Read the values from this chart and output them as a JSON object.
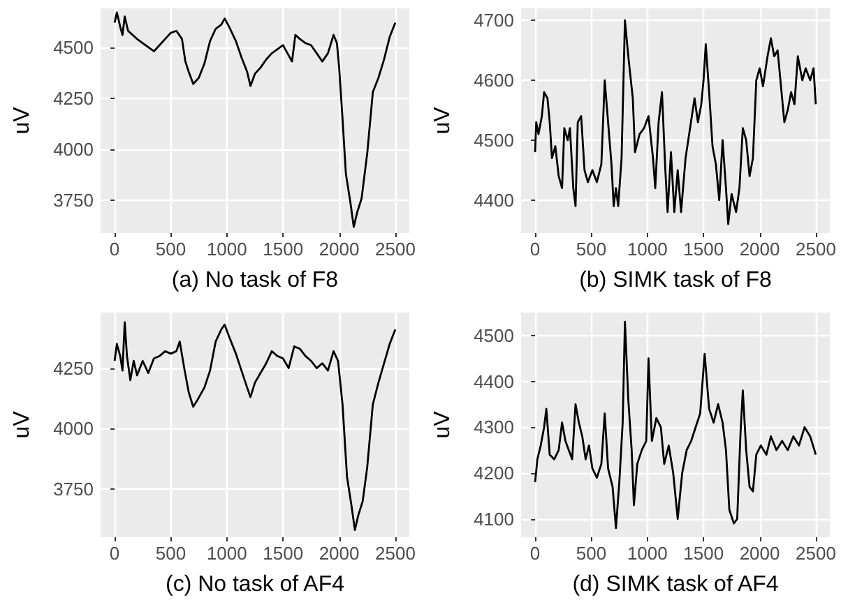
{
  "chart_data": [
    {
      "type": "line",
      "xlabel": "(a) No task of F8",
      "ylabel": "uV",
      "xlim": [
        -125,
        2625
      ],
      "xticks": [
        0,
        500,
        1000,
        1500,
        2000,
        2500
      ],
      "ylim": [
        3590,
        4690
      ],
      "yticks": [
        3750,
        4000,
        4250,
        4500
      ],
      "grid": true,
      "marker": "none",
      "line_style": "solid",
      "series": [
        {
          "color": "#000000",
          "x": [
            0,
            20,
            50,
            70,
            90,
            120,
            160,
            200,
            250,
            300,
            350,
            400,
            450,
            500,
            550,
            600,
            630,
            660,
            700,
            750,
            800,
            850,
            900,
            950,
            980,
            1020,
            1080,
            1130,
            1180,
            1210,
            1250,
            1300,
            1350,
            1400,
            1450,
            1500,
            1550,
            1580,
            1610,
            1650,
            1700,
            1750,
            1800,
            1850,
            1900,
            1950,
            1980,
            2000,
            2030,
            2060,
            2100,
            2130,
            2160,
            2200,
            2250,
            2300,
            2350,
            2400,
            2450,
            2500
          ],
          "values": [
            4620,
            4670,
            4600,
            4560,
            4650,
            4580,
            4560,
            4540,
            4520,
            4500,
            4480,
            4510,
            4540,
            4570,
            4580,
            4540,
            4430,
            4380,
            4320,
            4350,
            4420,
            4530,
            4590,
            4610,
            4640,
            4600,
            4530,
            4450,
            4380,
            4310,
            4370,
            4400,
            4440,
            4470,
            4490,
            4510,
            4460,
            4430,
            4560,
            4540,
            4520,
            4510,
            4470,
            4430,
            4470,
            4560,
            4520,
            4400,
            4150,
            3880,
            3740,
            3620,
            3690,
            3760,
            3980,
            4280,
            4350,
            4440,
            4550,
            4620
          ]
        }
      ]
    },
    {
      "type": "line",
      "xlabel": "(b) SIMK task of F8",
      "ylabel": "uV",
      "xlim": [
        -125,
        2625
      ],
      "xticks": [
        0,
        500,
        1000,
        1500,
        2000,
        2500
      ],
      "ylim": [
        4345,
        4720
      ],
      "yticks": [
        4400,
        4500,
        4600,
        4700
      ],
      "grid": true,
      "marker": "none",
      "line_style": "solid",
      "series": [
        {
          "color": "#000000",
          "x": [
            0,
            10,
            30,
            60,
            80,
            110,
            130,
            150,
            180,
            210,
            240,
            260,
            290,
            310,
            340,
            360,
            380,
            410,
            440,
            470,
            510,
            550,
            590,
            620,
            650,
            680,
            700,
            720,
            740,
            770,
            800,
            830,
            870,
            890,
            930,
            970,
            1010,
            1050,
            1070,
            1100,
            1130,
            1160,
            1180,
            1210,
            1240,
            1270,
            1300,
            1340,
            1380,
            1420,
            1450,
            1480,
            1500,
            1520,
            1550,
            1580,
            1610,
            1640,
            1670,
            1700,
            1720,
            1750,
            1790,
            1820,
            1850,
            1880,
            1910,
            1940,
            1970,
            2000,
            2030,
            2070,
            2100,
            2130,
            2160,
            2190,
            2220,
            2250,
            2280,
            2310,
            2340,
            2380,
            2410,
            2450,
            2480,
            2500
          ],
          "values": [
            4480,
            4530,
            4510,
            4540,
            4580,
            4570,
            4530,
            4470,
            4490,
            4440,
            4420,
            4520,
            4500,
            4520,
            4420,
            4390,
            4530,
            4540,
            4450,
            4430,
            4450,
            4430,
            4460,
            4600,
            4530,
            4460,
            4390,
            4420,
            4390,
            4470,
            4700,
            4640,
            4570,
            4480,
            4510,
            4520,
            4540,
            4470,
            4420,
            4530,
            4580,
            4450,
            4380,
            4480,
            4380,
            4450,
            4380,
            4470,
            4520,
            4570,
            4530,
            4560,
            4600,
            4660,
            4580,
            4490,
            4460,
            4400,
            4500,
            4420,
            4360,
            4410,
            4380,
            4420,
            4520,
            4500,
            4440,
            4470,
            4600,
            4620,
            4590,
            4640,
            4670,
            4640,
            4650,
            4590,
            4530,
            4550,
            4580,
            4560,
            4640,
            4600,
            4620,
            4600,
            4620,
            4560
          ]
        }
      ]
    },
    {
      "type": "line",
      "xlabel": "(c) No task of AF4",
      "ylabel": "uV",
      "xlim": [
        -125,
        2625
      ],
      "xticks": [
        0,
        500,
        1000,
        1500,
        2000,
        2500
      ],
      "ylim": [
        3550,
        4480
      ],
      "yticks": [
        3750,
        4000,
        4250
      ],
      "grid": true,
      "marker": "none",
      "line_style": "solid",
      "series": [
        {
          "color": "#000000",
          "x": [
            0,
            20,
            50,
            70,
            90,
            110,
            140,
            170,
            200,
            250,
            300,
            350,
            400,
            450,
            500,
            550,
            580,
            620,
            660,
            700,
            740,
            800,
            850,
            900,
            950,
            980,
            1020,
            1080,
            1130,
            1180,
            1210,
            1250,
            1300,
            1350,
            1400,
            1450,
            1500,
            1550,
            1600,
            1650,
            1700,
            1750,
            1800,
            1850,
            1900,
            1950,
            1990,
            2030,
            2070,
            2110,
            2140,
            2170,
            2210,
            2250,
            2300,
            2350,
            2400,
            2450,
            2500
          ],
          "values": [
            4280,
            4350,
            4300,
            4240,
            4440,
            4300,
            4200,
            4280,
            4220,
            4280,
            4230,
            4290,
            4300,
            4320,
            4310,
            4320,
            4360,
            4250,
            4150,
            4090,
            4120,
            4170,
            4240,
            4360,
            4410,
            4430,
            4380,
            4310,
            4240,
            4170,
            4130,
            4190,
            4230,
            4270,
            4320,
            4300,
            4290,
            4250,
            4340,
            4330,
            4300,
            4280,
            4250,
            4270,
            4240,
            4320,
            4280,
            4100,
            3800,
            3680,
            3580,
            3640,
            3700,
            3840,
            4100,
            4190,
            4270,
            4350,
            4410
          ]
        }
      ]
    },
    {
      "type": "line",
      "xlabel": "(d) SIMK task of AF4",
      "ylabel": "uV",
      "xlim": [
        -125,
        2625
      ],
      "xticks": [
        0,
        500,
        1000,
        1500,
        2000,
        2500
      ],
      "ylim": [
        4060,
        4550
      ],
      "yticks": [
        4100,
        4200,
        4300,
        4400,
        4500
      ],
      "grid": true,
      "marker": "none",
      "line_style": "solid",
      "series": [
        {
          "color": "#000000",
          "x": [
            0,
            20,
            50,
            80,
            100,
            130,
            170,
            210,
            240,
            270,
            300,
            330,
            360,
            390,
            420,
            450,
            480,
            510,
            550,
            590,
            620,
            650,
            690,
            720,
            750,
            780,
            800,
            830,
            860,
            880,
            910,
            950,
            990,
            1010,
            1040,
            1080,
            1120,
            1150,
            1190,
            1230,
            1270,
            1310,
            1350,
            1390,
            1430,
            1470,
            1510,
            1550,
            1590,
            1630,
            1670,
            1700,
            1730,
            1770,
            1800,
            1830,
            1850,
            1880,
            1910,
            1940,
            1970,
            2010,
            2060,
            2100,
            2150,
            2200,
            2250,
            2300,
            2350,
            2400,
            2450,
            2500
          ],
          "values": [
            4180,
            4230,
            4260,
            4300,
            4340,
            4240,
            4230,
            4250,
            4310,
            4270,
            4250,
            4230,
            4350,
            4310,
            4280,
            4230,
            4260,
            4210,
            4190,
            4220,
            4330,
            4210,
            4170,
            4080,
            4180,
            4310,
            4530,
            4360,
            4250,
            4130,
            4220,
            4250,
            4270,
            4450,
            4270,
            4320,
            4300,
            4220,
            4260,
            4200,
            4100,
            4200,
            4250,
            4270,
            4300,
            4330,
            4460,
            4340,
            4310,
            4350,
            4310,
            4250,
            4120,
            4090,
            4100,
            4290,
            4380,
            4250,
            4170,
            4160,
            4240,
            4260,
            4240,
            4280,
            4250,
            4270,
            4250,
            4280,
            4260,
            4300,
            4280,
            4240
          ]
        }
      ]
    }
  ]
}
